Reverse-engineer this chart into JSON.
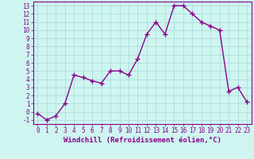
{
  "x": [
    0,
    1,
    2,
    3,
    4,
    5,
    6,
    7,
    8,
    9,
    10,
    11,
    12,
    13,
    14,
    15,
    16,
    17,
    18,
    19,
    20,
    21,
    22,
    23
  ],
  "y": [
    -0.2,
    -1,
    -0.5,
    1,
    4.5,
    4.2,
    3.8,
    3.5,
    5,
    5,
    4.5,
    6.5,
    9.5,
    11,
    9.5,
    13,
    13,
    12,
    11,
    10.5,
    10,
    2.5,
    3,
    1.2
  ],
  "color": "#8b008b",
  "bg_color": "#cef5f0",
  "grid_color": "#a8d8d8",
  "xlabel": "Windchill (Refroidissement éolien,°C)",
  "xlim": [
    -0.5,
    23.5
  ],
  "ylim": [
    -1.5,
    13.5
  ],
  "yticks": [
    -1,
    0,
    1,
    2,
    3,
    4,
    5,
    6,
    7,
    8,
    9,
    10,
    11,
    12,
    13
  ],
  "xticks": [
    0,
    1,
    2,
    3,
    4,
    5,
    6,
    7,
    8,
    9,
    10,
    11,
    12,
    13,
    14,
    15,
    16,
    17,
    18,
    19,
    20,
    21,
    22,
    23
  ],
  "marker": "+",
  "marker_size": 4,
  "line_width": 1.0,
  "xlabel_fontsize": 6.5,
  "tick_fontsize": 5.5
}
